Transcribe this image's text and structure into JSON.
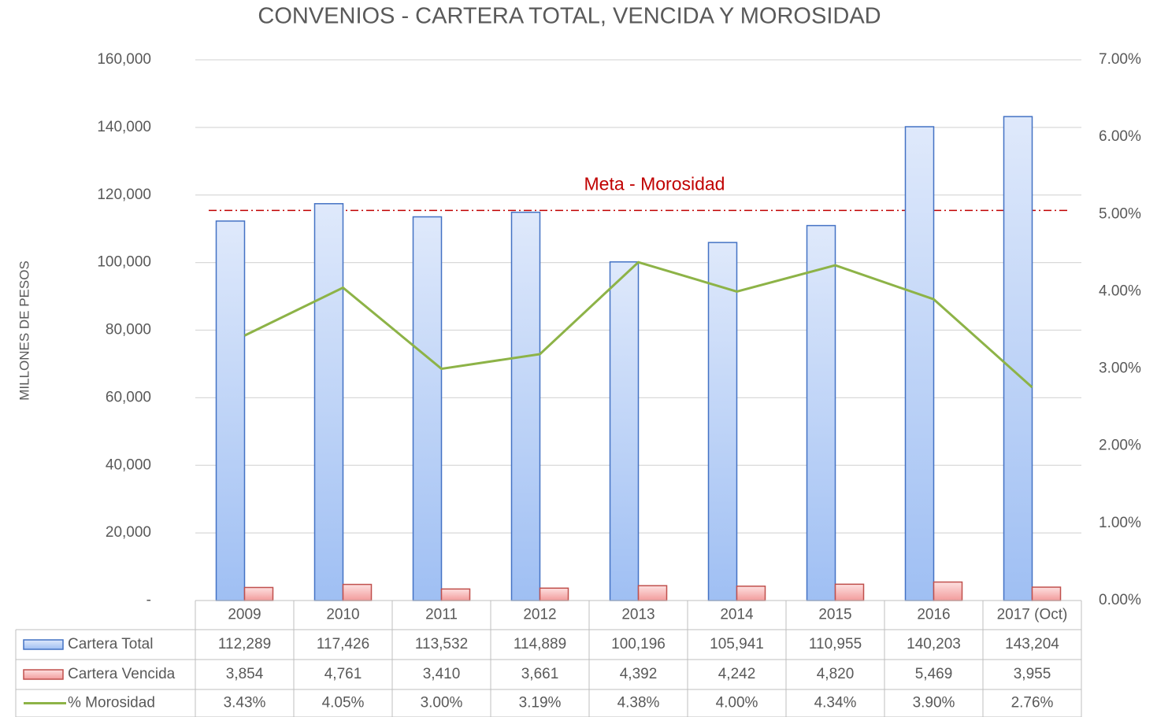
{
  "chart_data": {
    "type": "bar",
    "title": "CONVENIOS - CARTERA TOTAL, VENCIDA Y MOROSIDAD",
    "y_label": "MILLONES DE PESOS",
    "categories": [
      "2009",
      "2010",
      "2011",
      "2012",
      "2013",
      "2014",
      "2015",
      "2016",
      "2017 (Oct)"
    ],
    "series": [
      {
        "name": "Cartera Total",
        "type": "bar",
        "color": "#4472c4",
        "values": [
          112289,
          117426,
          113532,
          114889,
          100196,
          105941,
          110955,
          140203,
          143204
        ],
        "value_labels": [
          "112,289",
          "117,426",
          "113,532",
          "114,889",
          "100,196",
          "105,941",
          "110,955",
          "140,203",
          "143,204"
        ]
      },
      {
        "name": "Cartera Vencida",
        "type": "bar",
        "color": "#c0504d",
        "values": [
          3854,
          4761,
          3410,
          3661,
          4392,
          4242,
          4820,
          5469,
          3955
        ],
        "value_labels": [
          "3,854",
          "4,761",
          "3,410",
          "3,661",
          "4,392",
          "4,242",
          "4,820",
          "5,469",
          "3,955"
        ]
      },
      {
        "name": "% Morosidad",
        "type": "line",
        "axis": "y2",
        "color": "#8db347",
        "values": [
          3.43,
          4.05,
          3.0,
          3.19,
          4.38,
          4.0,
          4.34,
          3.9,
          2.76
        ],
        "value_labels": [
          "3.43%",
          "4.05%",
          "3.00%",
          "3.19%",
          "4.38%",
          "4.00%",
          "4.34%",
          "3.90%",
          "2.76%"
        ]
      }
    ],
    "ylim": [
      0,
      160000
    ],
    "yticks": [
      {
        "value": 0,
        "label": "-"
      },
      {
        "value": 20000,
        "label": "20,000"
      },
      {
        "value": 40000,
        "label": "40,000"
      },
      {
        "value": 60000,
        "label": "60,000"
      },
      {
        "value": 80000,
        "label": "80,000"
      },
      {
        "value": 100000,
        "label": "100,000"
      },
      {
        "value": 120000,
        "label": "120,000"
      },
      {
        "value": 140000,
        "label": "140,000"
      },
      {
        "value": 160000,
        "label": "160,000"
      }
    ],
    "y2lim": [
      0,
      7
    ],
    "y2ticks": [
      {
        "value": 0,
        "label": "0.00%"
      },
      {
        "value": 1,
        "label": "1.00%"
      },
      {
        "value": 2,
        "label": "2.00%"
      },
      {
        "value": 3,
        "label": "3.00%"
      },
      {
        "value": 4,
        "label": "4.00%"
      },
      {
        "value": 5,
        "label": "5.00%"
      },
      {
        "value": 6,
        "label": "6.00%"
      },
      {
        "value": 7,
        "label": "7.00%"
      }
    ],
    "target": {
      "label": "Meta - Morosidad",
      "value": 5.05,
      "axis": "y2",
      "color": "#c00000"
    },
    "grid": true,
    "data_table": true
  }
}
